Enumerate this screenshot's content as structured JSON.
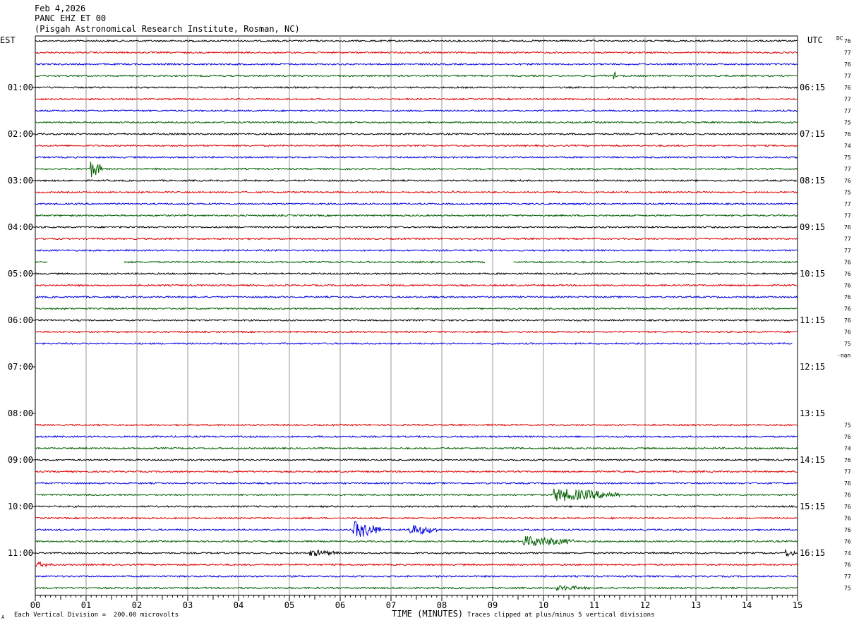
{
  "header": {
    "date": "Feb 4,2026",
    "station": "PANC EHZ ET 00",
    "institute": "(Pisgah Astronomical Research Institute, Rosman, NC)"
  },
  "axis_labels": {
    "left_zone": "EST",
    "right_zone": "UTC",
    "dc_label": "DC"
  },
  "footer": {
    "division_note": "Each Vertical Division =  200.00 microvolts",
    "x_title": "TIME (MINUTES)",
    "clip_note": "Traces clipped at plus/minus 5 vertical divisions",
    "corner_mark": "A"
  },
  "chart_data": {
    "type": "line",
    "title": "",
    "xlabel": "TIME (MINUTES)",
    "xlim": [
      0,
      15
    ],
    "x_ticks": [
      "00",
      "01",
      "02",
      "03",
      "04",
      "05",
      "06",
      "07",
      "08",
      "09",
      "10",
      "11",
      "12",
      "13",
      "14",
      "15"
    ],
    "left_hour_labels": [
      "01:00",
      "02:00",
      "03:00",
      "04:00",
      "05:00",
      "06:00",
      "07:00",
      "08:00",
      "09:00",
      "10:00",
      "11:00"
    ],
    "right_hour_labels": [
      "06:15",
      "07:15",
      "08:15",
      "09:15",
      "10:15",
      "11:15",
      "12:15",
      "13:15",
      "14:15",
      "15:15",
      "16:15"
    ],
    "trace_colors": [
      "#000000",
      "#e00000",
      "#0000e0",
      "#006000"
    ],
    "traces": [
      {
        "row": 0,
        "dc": "76"
      },
      {
        "row": 1,
        "dc": "77"
      },
      {
        "row": 2,
        "dc": "76"
      },
      {
        "row": 3,
        "dc": "77"
      },
      {
        "row": 4,
        "dc": "76"
      },
      {
        "row": 5,
        "dc": "77"
      },
      {
        "row": 6,
        "dc": "77"
      },
      {
        "row": 7,
        "dc": "75"
      },
      {
        "row": 8,
        "dc": "76"
      },
      {
        "row": 9,
        "dc": "74"
      },
      {
        "row": 10,
        "dc": "75"
      },
      {
        "row": 11,
        "dc": "77"
      },
      {
        "row": 12,
        "dc": "76"
      },
      {
        "row": 13,
        "dc": "75"
      },
      {
        "row": 14,
        "dc": "77"
      },
      {
        "row": 15,
        "dc": "77"
      },
      {
        "row": 16,
        "dc": "76"
      },
      {
        "row": 17,
        "dc": "77"
      },
      {
        "row": 18,
        "dc": "77"
      },
      {
        "row": 19,
        "dc": "76",
        "gaps": [
          [
            0.25,
            1.75
          ],
          [
            8.85,
            9.4
          ]
        ]
      },
      {
        "row": 20,
        "dc": "76"
      },
      {
        "row": 21,
        "dc": "76"
      },
      {
        "row": 22,
        "dc": "76"
      },
      {
        "row": 23,
        "dc": "76"
      },
      {
        "row": 24,
        "dc": "76"
      },
      {
        "row": 25,
        "dc": "76"
      },
      {
        "row": 26,
        "dc": "75",
        "end": 14.9
      },
      {
        "row": 27,
        "dc": "-nan"
      },
      {
        "row": 33,
        "dc": "75"
      },
      {
        "row": 34,
        "dc": "76"
      },
      {
        "row": 35,
        "dc": "74"
      },
      {
        "row": 36,
        "dc": "76"
      },
      {
        "row": 37,
        "dc": "77"
      },
      {
        "row": 38,
        "dc": "76"
      },
      {
        "row": 39,
        "dc": "76"
      },
      {
        "row": 40,
        "dc": "76"
      },
      {
        "row": 41,
        "dc": "76"
      },
      {
        "row": 42,
        "dc": "76"
      },
      {
        "row": 43,
        "dc": "76"
      },
      {
        "row": 44,
        "dc": "74"
      },
      {
        "row": 45,
        "dc": "76"
      },
      {
        "row": 46,
        "dc": "77"
      },
      {
        "row": 47,
        "dc": "75"
      }
    ],
    "events": [
      {
        "row": 3,
        "t": 11.38,
        "amp": 9,
        "dur": 0.05
      },
      {
        "row": 11,
        "t": 1.08,
        "amp": 13,
        "dur": 0.25
      },
      {
        "row": 13,
        "t": 8.2,
        "amp": 4,
        "dur": 0.05
      },
      {
        "row": 39,
        "t": 10.2,
        "amp": 10,
        "dur": 1.3
      },
      {
        "row": 42,
        "t": 6.25,
        "amp": 13,
        "dur": 0.55
      },
      {
        "row": 42,
        "t": 7.35,
        "amp": 8,
        "dur": 0.6
      },
      {
        "row": 43,
        "t": 9.6,
        "amp": 8,
        "dur": 1.0
      },
      {
        "row": 44,
        "t": 5.4,
        "amp": 5,
        "dur": 0.6
      },
      {
        "row": 44,
        "t": 14.75,
        "amp": 7,
        "dur": 0.2
      },
      {
        "row": 45,
        "t": 0.0,
        "amp": 4,
        "dur": 0.4
      },
      {
        "row": 47,
        "t": 10.25,
        "amp": 4,
        "dur": 0.7
      }
    ]
  }
}
